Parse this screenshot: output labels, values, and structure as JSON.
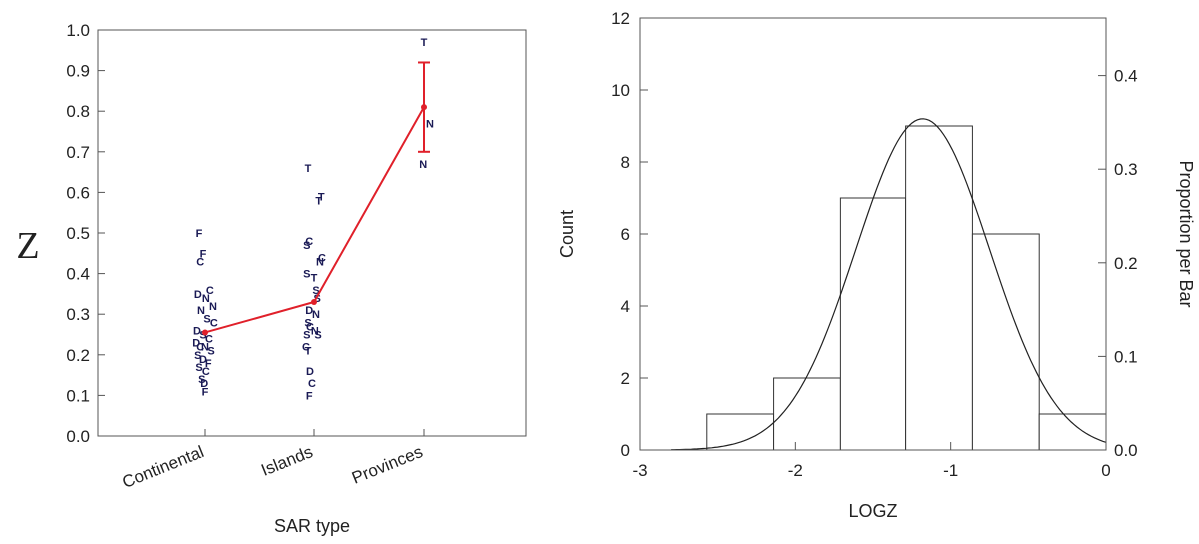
{
  "chart_data": [
    {
      "type": "scatter",
      "title": "",
      "xlabel": "SAR type",
      "ylabel": "Z",
      "ylim": [
        0,
        1
      ],
      "yticks": [
        "0.0",
        "0.1",
        "0.2",
        "0.3",
        "0.4",
        "0.5",
        "0.6",
        "0.7",
        "0.8",
        "0.9",
        "1.0"
      ],
      "categories": [
        "Continental",
        "Islands",
        "Provinces"
      ],
      "mean_line": {
        "color": "#e0202a",
        "values": [
          0.255,
          0.33,
          0.81
        ],
        "error_bar": {
          "category": "Provinces",
          "low": 0.7,
          "high": 0.92
        }
      },
      "points": [
        {
          "cat": 0,
          "dx": -0.15,
          "y": 0.5,
          "label": "F"
        },
        {
          "cat": 0,
          "dx": -0.12,
          "y": 0.43,
          "label": "C"
        },
        {
          "cat": 0,
          "dx": -0.05,
          "y": 0.45,
          "label": "F"
        },
        {
          "cat": 0,
          "dx": -0.18,
          "y": 0.35,
          "label": "D"
        },
        {
          "cat": 0,
          "dx": 0.02,
          "y": 0.34,
          "label": "N"
        },
        {
          "cat": 0,
          "dx": 0.12,
          "y": 0.36,
          "label": "C"
        },
        {
          "cat": 0,
          "dx": 0.2,
          "y": 0.32,
          "label": "N"
        },
        {
          "cat": 0,
          "dx": -0.1,
          "y": 0.31,
          "label": "N"
        },
        {
          "cat": 0,
          "dx": 0.05,
          "y": 0.29,
          "label": "S"
        },
        {
          "cat": 0,
          "dx": 0.22,
          "y": 0.28,
          "label": "C"
        },
        {
          "cat": 0,
          "dx": -0.2,
          "y": 0.26,
          "label": "D"
        },
        {
          "cat": 0,
          "dx": -0.05,
          "y": 0.25,
          "label": "S"
        },
        {
          "cat": 0,
          "dx": 0.1,
          "y": 0.24,
          "label": "C"
        },
        {
          "cat": 0,
          "dx": -0.22,
          "y": 0.23,
          "label": "D"
        },
        {
          "cat": 0,
          "dx": -0.12,
          "y": 0.22,
          "label": "C"
        },
        {
          "cat": 0,
          "dx": 0.0,
          "y": 0.22,
          "label": "N"
        },
        {
          "cat": 0,
          "dx": 0.15,
          "y": 0.21,
          "label": "S"
        },
        {
          "cat": 0,
          "dx": -0.18,
          "y": 0.2,
          "label": "S"
        },
        {
          "cat": 0,
          "dx": -0.05,
          "y": 0.19,
          "label": "D"
        },
        {
          "cat": 0,
          "dx": 0.08,
          "y": 0.18,
          "label": "F"
        },
        {
          "cat": 0,
          "dx": -0.15,
          "y": 0.17,
          "label": "S"
        },
        {
          "cat": 0,
          "dx": 0.02,
          "y": 0.16,
          "label": "C"
        },
        {
          "cat": 0,
          "dx": -0.08,
          "y": 0.14,
          "label": "S"
        },
        {
          "cat": 0,
          "dx": -0.02,
          "y": 0.13,
          "label": "D"
        },
        {
          "cat": 0,
          "dx": 0.0,
          "y": 0.11,
          "label": "F"
        },
        {
          "cat": 1,
          "dx": -0.15,
          "y": 0.66,
          "label": "T"
        },
        {
          "cat": 1,
          "dx": 0.12,
          "y": 0.58,
          "label": "T"
        },
        {
          "cat": 1,
          "dx": 0.18,
          "y": 0.59,
          "label": "T"
        },
        {
          "cat": 1,
          "dx": -0.18,
          "y": 0.47,
          "label": "S"
        },
        {
          "cat": 1,
          "dx": -0.12,
          "y": 0.48,
          "label": "C"
        },
        {
          "cat": 1,
          "dx": 0.15,
          "y": 0.43,
          "label": "N"
        },
        {
          "cat": 1,
          "dx": 0.2,
          "y": 0.44,
          "label": "C"
        },
        {
          "cat": 1,
          "dx": -0.18,
          "y": 0.4,
          "label": "S"
        },
        {
          "cat": 1,
          "dx": 0.0,
          "y": 0.39,
          "label": "T"
        },
        {
          "cat": 1,
          "dx": 0.05,
          "y": 0.36,
          "label": "S"
        },
        {
          "cat": 1,
          "dx": 0.08,
          "y": 0.34,
          "label": "S"
        },
        {
          "cat": 1,
          "dx": -0.12,
          "y": 0.31,
          "label": "D"
        },
        {
          "cat": 1,
          "dx": 0.05,
          "y": 0.3,
          "label": "N"
        },
        {
          "cat": 1,
          "dx": -0.15,
          "y": 0.28,
          "label": "S"
        },
        {
          "cat": 1,
          "dx": -0.1,
          "y": 0.27,
          "label": "C"
        },
        {
          "cat": 1,
          "dx": -0.18,
          "y": 0.25,
          "label": "S"
        },
        {
          "cat": 1,
          "dx": 0.02,
          "y": 0.26,
          "label": "N"
        },
        {
          "cat": 1,
          "dx": 0.1,
          "y": 0.25,
          "label": "S"
        },
        {
          "cat": 1,
          "dx": -0.2,
          "y": 0.22,
          "label": "C"
        },
        {
          "cat": 1,
          "dx": -0.15,
          "y": 0.21,
          "label": "T"
        },
        {
          "cat": 1,
          "dx": -0.1,
          "y": 0.16,
          "label": "D"
        },
        {
          "cat": 1,
          "dx": -0.05,
          "y": 0.13,
          "label": "C"
        },
        {
          "cat": 1,
          "dx": -0.12,
          "y": 0.1,
          "label": "F"
        },
        {
          "cat": 2,
          "dx": 0.0,
          "y": 0.97,
          "label": "T"
        },
        {
          "cat": 2,
          "dx": 0.15,
          "y": 0.77,
          "label": "N"
        },
        {
          "cat": 2,
          "dx": -0.02,
          "y": 0.67,
          "label": "N"
        }
      ]
    },
    {
      "type": "bar",
      "title": "",
      "xlabel": "LOGZ",
      "ylabel": "Count",
      "ylabel_right": "Proportion per Bar",
      "xlim": [
        -3,
        0
      ],
      "ylim": [
        0,
        12
      ],
      "xticks": [
        "-3",
        "-2",
        "-1",
        "0"
      ],
      "yticks": [
        "0",
        "2",
        "4",
        "6",
        "8",
        "10",
        "12"
      ],
      "yticks_right": [
        "0.0",
        "0.1",
        "0.2",
        "0.3",
        "0.4"
      ],
      "bins": [
        {
          "x0": -2.57,
          "x1": -2.14,
          "count": 1
        },
        {
          "x0": -2.14,
          "x1": -1.71,
          "count": 2
        },
        {
          "x0": -1.71,
          "x1": -1.29,
          "count": 7
        },
        {
          "x0": -1.29,
          "x1": -0.86,
          "count": 9
        },
        {
          "x0": -0.86,
          "x1": -0.43,
          "count": 6
        },
        {
          "x0": -0.43,
          "x1": 0.0,
          "count": 1
        }
      ],
      "normal_curve": {
        "mean": -1.18,
        "sd": 0.43,
        "peak_count": 9.2
      }
    }
  ]
}
